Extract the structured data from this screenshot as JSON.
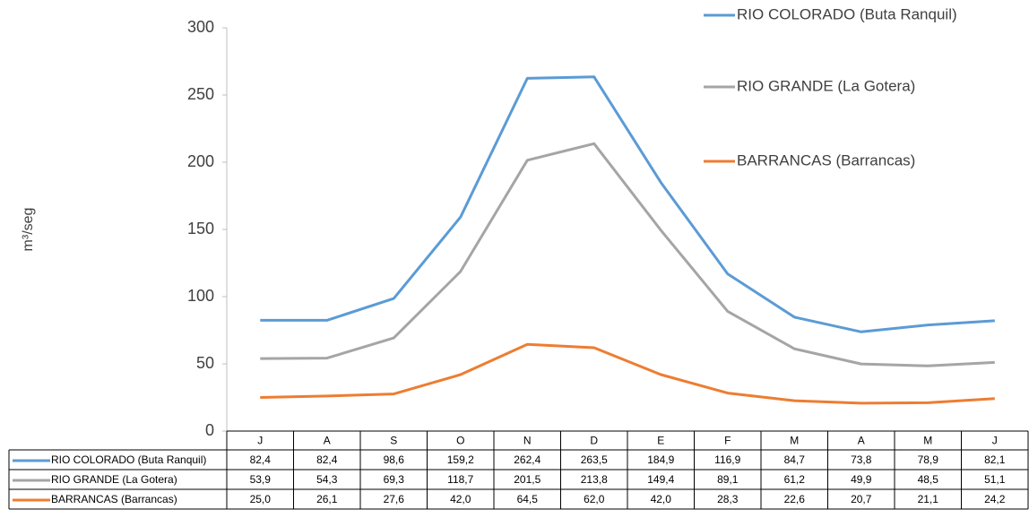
{
  "chart_data": {
    "type": "line",
    "y_label": "m³/seg",
    "categories": [
      "J",
      "A",
      "S",
      "O",
      "N",
      "D",
      "E",
      "F",
      "M",
      "A",
      "M",
      "J"
    ],
    "series": [
      {
        "name": "RIO COLORADO (Buta Ranquil)",
        "color": "#5b9bd5",
        "values": [
          82.4,
          82.4,
          98.6,
          159.2,
          262.4,
          263.5,
          184.9,
          116.9,
          84.7,
          73.8,
          78.9,
          82.1
        ],
        "value_labels": [
          "82,4",
          "82,4",
          "98,6",
          "159,2",
          "262,4",
          "263,5",
          "184,9",
          "116,9",
          "84,7",
          "73,8",
          "78,9",
          "82,1"
        ]
      },
      {
        "name": "RIO GRANDE (La Gotera)",
        "color": "#a5a5a5",
        "values": [
          53.9,
          54.3,
          69.3,
          118.7,
          201.5,
          213.8,
          149.4,
          89.1,
          61.2,
          49.9,
          48.5,
          51.1
        ],
        "value_labels": [
          "53,9",
          "54,3",
          "69,3",
          "118,7",
          "201,5",
          "213,8",
          "149,4",
          "89,1",
          "61,2",
          "49,9",
          "48,5",
          "51,1"
        ]
      },
      {
        "name": "BARRANCAS (Barrancas)",
        "color": "#ed7d31",
        "values": [
          25.0,
          26.1,
          27.6,
          42.0,
          64.5,
          62.0,
          42.0,
          28.3,
          22.6,
          20.7,
          21.1,
          24.2
        ],
        "value_labels": [
          "25,0",
          "26,1",
          "27,6",
          "42,0",
          "64,5",
          "62,0",
          "42,0",
          "28,3",
          "22,6",
          "20,7",
          "21,1",
          "24,2"
        ]
      }
    ],
    "ylim": [
      0,
      300
    ],
    "yticks": [
      0,
      50,
      100,
      150,
      200,
      250,
      300
    ],
    "grid": false,
    "legend": "top-right"
  }
}
